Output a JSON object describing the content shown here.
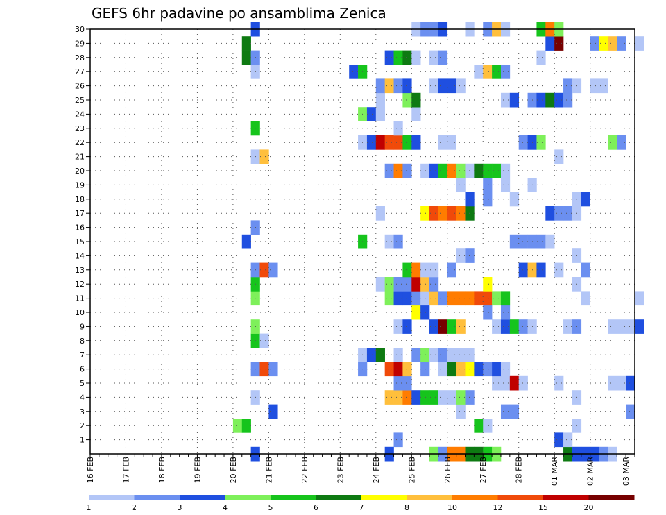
{
  "chart_data": {
    "type": "heatmap",
    "title": "GEFS 6hr padavine po ansamblima Zenica",
    "x_tick_labels": [
      "16 FEB",
      "17 FEB",
      "18 FEB",
      "19 FEB",
      "20 FEB",
      "21 FEB",
      "22 FEB",
      "23 FEB",
      "24 FEB",
      "25 FEB",
      "26 FEB",
      "27 FEB",
      "28 FEB",
      "01 MAR",
      "02 MAR",
      "03 MAR"
    ],
    "x_range_steps": [
      0,
      61
    ],
    "x_step": "6 hours",
    "y_tick_labels": [
      "1",
      "2",
      "3",
      "4",
      "5",
      "6",
      "7",
      "8",
      "9",
      "10",
      "11",
      "12",
      "13",
      "14",
      "15",
      "16",
      "17",
      "18",
      "19",
      "20",
      "21",
      "22",
      "23",
      "24",
      "25",
      "26",
      "27",
      "28",
      "29",
      "30"
    ],
    "y_range": [
      0,
      30
    ],
    "grid": true,
    "legend_placement": "bottom",
    "color_scale": {
      "thresholds": [
        "1",
        "2",
        "3",
        "4",
        "5",
        "6",
        "7",
        "8",
        "10",
        "12",
        "15",
        "20"
      ],
      "colors": [
        "#b3c6f7",
        "#6b8ff0",
        "#1f4fe0",
        "#7ef05a",
        "#16c41c",
        "#0e7a12",
        "#ffff00",
        "#ffbf3c",
        "#ff7c00",
        "#f04a0a",
        "#c00000",
        "#770000"
      ]
    },
    "cells": [
      [
        0,
        18,
        3
      ],
      [
        0,
        33,
        3
      ],
      [
        0,
        38,
        4
      ],
      [
        0,
        39,
        2
      ],
      [
        0,
        40,
        9
      ],
      [
        0,
        41,
        9
      ],
      [
        0,
        42,
        6
      ],
      [
        0,
        43,
        6
      ],
      [
        0,
        44,
        5
      ],
      [
        0,
        45,
        4
      ],
      [
        0,
        53,
        6
      ],
      [
        0,
        54,
        3
      ],
      [
        0,
        55,
        3
      ],
      [
        0,
        56,
        3
      ],
      [
        0,
        57,
        2
      ],
      [
        0,
        58,
        1
      ],
      [
        1,
        34,
        2
      ],
      [
        1,
        52,
        3
      ],
      [
        1,
        53,
        1
      ],
      [
        2,
        16,
        4
      ],
      [
        2,
        17,
        5
      ],
      [
        2,
        43,
        5
      ],
      [
        2,
        44,
        1
      ],
      [
        2,
        54,
        1
      ],
      [
        3,
        20,
        3
      ],
      [
        3,
        41,
        1
      ],
      [
        3,
        46,
        2
      ],
      [
        3,
        47,
        2
      ],
      [
        3,
        60,
        2
      ],
      [
        4,
        18,
        1
      ],
      [
        4,
        33,
        8
      ],
      [
        4,
        34,
        8
      ],
      [
        4,
        35,
        9
      ],
      [
        4,
        36,
        3
      ],
      [
        4,
        37,
        5
      ],
      [
        4,
        38,
        5
      ],
      [
        4,
        39,
        1
      ],
      [
        4,
        40,
        1
      ],
      [
        4,
        41,
        4
      ],
      [
        4,
        42,
        2
      ],
      [
        4,
        54,
        1
      ],
      [
        5,
        34,
        2
      ],
      [
        5,
        35,
        2
      ],
      [
        5,
        45,
        1
      ],
      [
        5,
        46,
        1
      ],
      [
        5,
        47,
        11
      ],
      [
        5,
        48,
        1
      ],
      [
        5,
        52,
        1
      ],
      [
        5,
        58,
        1
      ],
      [
        5,
        59,
        1
      ],
      [
        5,
        60,
        3
      ],
      [
        6,
        18,
        2
      ],
      [
        6,
        19,
        10
      ],
      [
        6,
        20,
        2
      ],
      [
        6,
        30,
        2
      ],
      [
        6,
        33,
        10
      ],
      [
        6,
        34,
        11
      ],
      [
        6,
        35,
        8
      ],
      [
        6,
        37,
        2
      ],
      [
        6,
        39,
        1
      ],
      [
        6,
        40,
        6
      ],
      [
        6,
        41,
        8
      ],
      [
        6,
        42,
        7
      ],
      [
        6,
        43,
        3
      ],
      [
        6,
        44,
        2
      ],
      [
        6,
        45,
        3
      ],
      [
        6,
        46,
        1
      ],
      [
        7,
        30,
        1
      ],
      [
        7,
        31,
        3
      ],
      [
        7,
        32,
        6
      ],
      [
        7,
        34,
        1
      ],
      [
        7,
        36,
        2
      ],
      [
        7,
        37,
        4
      ],
      [
        7,
        38,
        1
      ],
      [
        7,
        39,
        2
      ],
      [
        7,
        40,
        1
      ],
      [
        7,
        41,
        1
      ],
      [
        7,
        42,
        1
      ],
      [
        8,
        18,
        5
      ],
      [
        8,
        19,
        1
      ],
      [
        9,
        18,
        4
      ],
      [
        9,
        34,
        1
      ],
      [
        9,
        35,
        3
      ],
      [
        9,
        38,
        3
      ],
      [
        9,
        39,
        12
      ],
      [
        9,
        40,
        5
      ],
      [
        9,
        41,
        8
      ],
      [
        9,
        45,
        1
      ],
      [
        9,
        46,
        3
      ],
      [
        9,
        47,
        5
      ],
      [
        9,
        48,
        2
      ],
      [
        9,
        49,
        1
      ],
      [
        9,
        53,
        1
      ],
      [
        9,
        54,
        2
      ],
      [
        9,
        58,
        1
      ],
      [
        9,
        59,
        1
      ],
      [
        9,
        60,
        1
      ],
      [
        9,
        61,
        3
      ],
      [
        10,
        36,
        7
      ],
      [
        10,
        37,
        3
      ],
      [
        10,
        44,
        2
      ],
      [
        10,
        46,
        2
      ],
      [
        11,
        18,
        4
      ],
      [
        11,
        33,
        4
      ],
      [
        11,
        34,
        3
      ],
      [
        11,
        35,
        3
      ],
      [
        11,
        36,
        2
      ],
      [
        11,
        37,
        1
      ],
      [
        11,
        38,
        8
      ],
      [
        11,
        39,
        2
      ],
      [
        11,
        40,
        9
      ],
      [
        11,
        41,
        9
      ],
      [
        11,
        42,
        9
      ],
      [
        11,
        43,
        10
      ],
      [
        11,
        44,
        10
      ],
      [
        11,
        45,
        4
      ],
      [
        11,
        46,
        5
      ],
      [
        11,
        55,
        1
      ],
      [
        11,
        61,
        1
      ],
      [
        12,
        18,
        5
      ],
      [
        12,
        32,
        1
      ],
      [
        12,
        33,
        4
      ],
      [
        12,
        34,
        2
      ],
      [
        12,
        35,
        2
      ],
      [
        12,
        36,
        11
      ],
      [
        12,
        37,
        8
      ],
      [
        12,
        38,
        2
      ],
      [
        12,
        44,
        7
      ],
      [
        12,
        54,
        1
      ],
      [
        13,
        18,
        2
      ],
      [
        13,
        19,
        10
      ],
      [
        13,
        20,
        2
      ],
      [
        13,
        35,
        5
      ],
      [
        13,
        36,
        9
      ],
      [
        13,
        37,
        1
      ],
      [
        13,
        38,
        1
      ],
      [
        13,
        40,
        2
      ],
      [
        13,
        48,
        3
      ],
      [
        13,
        49,
        8
      ],
      [
        13,
        50,
        3
      ],
      [
        13,
        52,
        1
      ],
      [
        13,
        55,
        2
      ],
      [
        14,
        41,
        1
      ],
      [
        14,
        42,
        2
      ],
      [
        14,
        54,
        1
      ],
      [
        15,
        17,
        3
      ],
      [
        15,
        30,
        5
      ],
      [
        15,
        33,
        1
      ],
      [
        15,
        34,
        2
      ],
      [
        15,
        47,
        2
      ],
      [
        15,
        48,
        2
      ],
      [
        15,
        49,
        2
      ],
      [
        15,
        50,
        2
      ],
      [
        15,
        51,
        1
      ],
      [
        16,
        18,
        2
      ],
      [
        17,
        32,
        1
      ],
      [
        17,
        37,
        7
      ],
      [
        17,
        38,
        10
      ],
      [
        17,
        39,
        9
      ],
      [
        17,
        40,
        10
      ],
      [
        17,
        41,
        9
      ],
      [
        17,
        42,
        6
      ],
      [
        17,
        51,
        3
      ],
      [
        17,
        52,
        2
      ],
      [
        17,
        53,
        2
      ],
      [
        17,
        54,
        1
      ],
      [
        18,
        42,
        3
      ],
      [
        18,
        44,
        2
      ],
      [
        18,
        47,
        1
      ],
      [
        18,
        54,
        1
      ],
      [
        18,
        55,
        3
      ],
      [
        19,
        41,
        1
      ],
      [
        19,
        44,
        2
      ],
      [
        19,
        46,
        1
      ],
      [
        19,
        49,
        1
      ],
      [
        20,
        33,
        2
      ],
      [
        20,
        34,
        9
      ],
      [
        20,
        35,
        2
      ],
      [
        20,
        37,
        1
      ],
      [
        20,
        38,
        3
      ],
      [
        20,
        39,
        5
      ],
      [
        20,
        40,
        9
      ],
      [
        20,
        41,
        4
      ],
      [
        20,
        42,
        1
      ],
      [
        20,
        43,
        6
      ],
      [
        20,
        44,
        5
      ],
      [
        20,
        45,
        5
      ],
      [
        20,
        46,
        1
      ],
      [
        21,
        18,
        1
      ],
      [
        21,
        19,
        8
      ],
      [
        21,
        52,
        1
      ],
      [
        22,
        30,
        1
      ],
      [
        22,
        31,
        3
      ],
      [
        22,
        32,
        11
      ],
      [
        22,
        33,
        10
      ],
      [
        22,
        34,
        10
      ],
      [
        22,
        35,
        5
      ],
      [
        22,
        36,
        3
      ],
      [
        22,
        39,
        1
      ],
      [
        22,
        40,
        1
      ],
      [
        22,
        48,
        2
      ],
      [
        22,
        49,
        3
      ],
      [
        22,
        50,
        4
      ],
      [
        22,
        58,
        4
      ],
      [
        22,
        59,
        2
      ],
      [
        23,
        18,
        5
      ],
      [
        23,
        34,
        1
      ],
      [
        24,
        30,
        4
      ],
      [
        24,
        31,
        3
      ],
      [
        24,
        32,
        1
      ],
      [
        24,
        36,
        1
      ],
      [
        25,
        32,
        1
      ],
      [
        25,
        35,
        4
      ],
      [
        25,
        36,
        6
      ],
      [
        25,
        46,
        1
      ],
      [
        25,
        47,
        3
      ],
      [
        25,
        49,
        2
      ],
      [
        25,
        50,
        3
      ],
      [
        25,
        51,
        6
      ],
      [
        25,
        52,
        3
      ],
      [
        25,
        53,
        2
      ],
      [
        26,
        32,
        2
      ],
      [
        26,
        33,
        8
      ],
      [
        26,
        34,
        2
      ],
      [
        26,
        35,
        3
      ],
      [
        26,
        38,
        1
      ],
      [
        26,
        39,
        3
      ],
      [
        26,
        40,
        3
      ],
      [
        26,
        41,
        1
      ],
      [
        26,
        53,
        2
      ],
      [
        26,
        54,
        1
      ],
      [
        26,
        56,
        1
      ],
      [
        26,
        57,
        1
      ],
      [
        27,
        18,
        1
      ],
      [
        27,
        29,
        3
      ],
      [
        27,
        30,
        5
      ],
      [
        27,
        43,
        1
      ],
      [
        27,
        44,
        8
      ],
      [
        27,
        45,
        5
      ],
      [
        27,
        46,
        2
      ],
      [
        28,
        17,
        6
      ],
      [
        28,
        18,
        2
      ],
      [
        28,
        33,
        3
      ],
      [
        28,
        34,
        5
      ],
      [
        28,
        35,
        6
      ],
      [
        28,
        36,
        1
      ],
      [
        28,
        38,
        1
      ],
      [
        28,
        39,
        2
      ],
      [
        28,
        50,
        1
      ],
      [
        29,
        17,
        6
      ],
      [
        29,
        51,
        3
      ],
      [
        29,
        52,
        12
      ],
      [
        29,
        56,
        2
      ],
      [
        29,
        57,
        7
      ],
      [
        29,
        58,
        8
      ],
      [
        29,
        59,
        2
      ],
      [
        29,
        61,
        1
      ],
      [
        30,
        18,
        3
      ],
      [
        30,
        36,
        1
      ],
      [
        30,
        37,
        2
      ],
      [
        30,
        38,
        2
      ],
      [
        30,
        39,
        3
      ],
      [
        30,
        42,
        1
      ],
      [
        30,
        44,
        2
      ],
      [
        30,
        45,
        8
      ],
      [
        30,
        46,
        1
      ],
      [
        30,
        50,
        5
      ],
      [
        30,
        51,
        9
      ],
      [
        30,
        52,
        4
      ]
    ]
  }
}
